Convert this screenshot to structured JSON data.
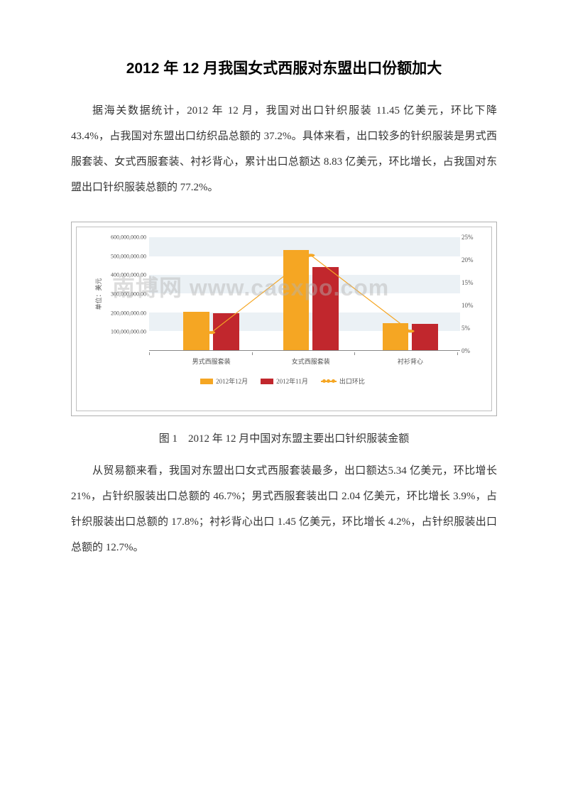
{
  "title": "2012 年 12 月我国女式西服对东盟出口份额加大",
  "para1": "据海关数据统计，2012 年 12 月，我国对出口针织服装 11.45 亿美元，环比下降 43.4%，占我国对东盟出口纺织品总额的 37.2%。具体来看，出口较多的针织服装是男式西服套装、女式西服套装、衬衫背心，累计出口总额达 8.83 亿美元，环比增长，占我国对东盟出口针织服装总额的 77.2%。",
  "figure_caption": "图 1　2012 年 12 月中国对东盟主要出口针织服装金额",
  "para2": "从贸易额来看，我国对东盟出口女式西服套装最多，出口额达5.34 亿美元，环比增长 21%，占针织服装出口总额的 46.7%；男式西服套装出口 2.04 亿美元，环比增长 3.9%，占针织服装出口总额的 17.8%；衬衫背心出口 1.45 亿美元，环比增长 4.2%，占针织服装出口总额的 12.7%。",
  "watermark": "南博网 www.caexpo.com",
  "chart": {
    "type": "bar_with_line",
    "y_left_label": "单位：美元",
    "y_left_ticks": [
      "600,000,000.00",
      "500,000,000.00",
      "400,000,000.00",
      "300,000,000.00",
      "200,000,000.00",
      "100,000,000.00"
    ],
    "y_left_max": 600000000,
    "y_right_ticks": [
      "25%",
      "20%",
      "15%",
      "10%",
      "5%",
      "0%"
    ],
    "y_right_max": 25,
    "categories": [
      "男式西服套装",
      "女式西服套装",
      "衬衫背心"
    ],
    "series": [
      {
        "name": "2012年12月",
        "color": "#f5a623",
        "values": [
          204000000,
          534000000,
          145000000
        ]
      },
      {
        "name": "2012年11月",
        "color": "#c1272d",
        "values": [
          196000000,
          441000000,
          139000000
        ]
      }
    ],
    "line_series": {
      "name": "出口环比",
      "color": "#f5a623",
      "values": [
        3.9,
        21,
        4.2
      ]
    },
    "bar_width_ratio": 0.3,
    "background_bands": [
      {
        "from_pct": 0,
        "to_pct": 16.67
      },
      {
        "from_pct": 33.33,
        "to_pct": 50
      },
      {
        "from_pct": 66.67,
        "to_pct": 83.33
      }
    ],
    "group_positions_pct": [
      6,
      38,
      70
    ]
  }
}
